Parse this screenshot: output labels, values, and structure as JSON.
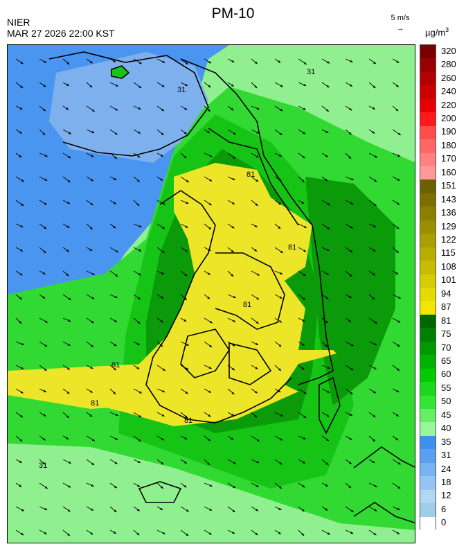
{
  "header": {
    "title": "PM-10",
    "agency": "NIER",
    "timestamp": "MAR 27 2026 22:00 KST",
    "wind_reference": "5 m/s",
    "unit_main": "µg/m",
    "unit_sup": "3"
  },
  "legend": {
    "levels": [
      {
        "label": "320",
        "color": "#7a0000"
      },
      {
        "label": "280",
        "color": "#9a0000"
      },
      {
        "label": "260",
        "color": "#b30000"
      },
      {
        "label": "240",
        "color": "#cc0000"
      },
      {
        "label": "220",
        "color": "#e60000"
      },
      {
        "label": "200",
        "color": "#ff1a1a"
      },
      {
        "label": "190",
        "color": "#ff4d4d"
      },
      {
        "label": "180",
        "color": "#ff6666"
      },
      {
        "label": "170",
        "color": "#ff8080"
      },
      {
        "label": "160",
        "color": "#ff9999"
      },
      {
        "label": "151",
        "color": "#6b6000"
      },
      {
        "label": "143",
        "color": "#7a6f00"
      },
      {
        "label": "136",
        "color": "#8a7f00"
      },
      {
        "label": "129",
        "color": "#998f00"
      },
      {
        "label": "122",
        "color": "#a99f00"
      },
      {
        "label": "115",
        "color": "#b8ae00"
      },
      {
        "label": "108",
        "color": "#c7bd00"
      },
      {
        "label": "101",
        "color": "#d6cc00"
      },
      {
        "label": "94",
        "color": "#e6db00"
      },
      {
        "label": "87",
        "color": "#f2e600"
      },
      {
        "label": "81",
        "color": "#006600"
      },
      {
        "label": "75",
        "color": "#008000"
      },
      {
        "label": "70",
        "color": "#009900"
      },
      {
        "label": "65",
        "color": "#00b300"
      },
      {
        "label": "60",
        "color": "#00cc00"
      },
      {
        "label": "55",
        "color": "#1ad91a"
      },
      {
        "label": "50",
        "color": "#33e633"
      },
      {
        "label": "45",
        "color": "#66ee66"
      },
      {
        "label": "40",
        "color": "#99f599"
      },
      {
        "label": "35",
        "color": "#3d8ff0"
      },
      {
        "label": "31",
        "color": "#5aa0f0"
      },
      {
        "label": "24",
        "color": "#78b2f2"
      },
      {
        "label": "18",
        "color": "#95c4f4"
      },
      {
        "label": "12",
        "color": "#b3d6f6"
      },
      {
        "label": "6",
        "color": "#9ecde8"
      },
      {
        "label": "0",
        "color": "#ffffff"
      }
    ]
  },
  "map": {
    "colors": {
      "sea_low": "#4a95f0",
      "land_low": "#7fb0ee",
      "light_green": "#90f090",
      "mid_green": "#33d933",
      "green": "#16c416",
      "dark_green": "#0a9a0a",
      "yellow": "#ede628",
      "boundary": "#000000",
      "arrow": "#000000"
    },
    "contour_labels": [
      "81",
      "81",
      "81",
      "81",
      "81",
      "81",
      "31",
      "31",
      "31"
    ]
  }
}
